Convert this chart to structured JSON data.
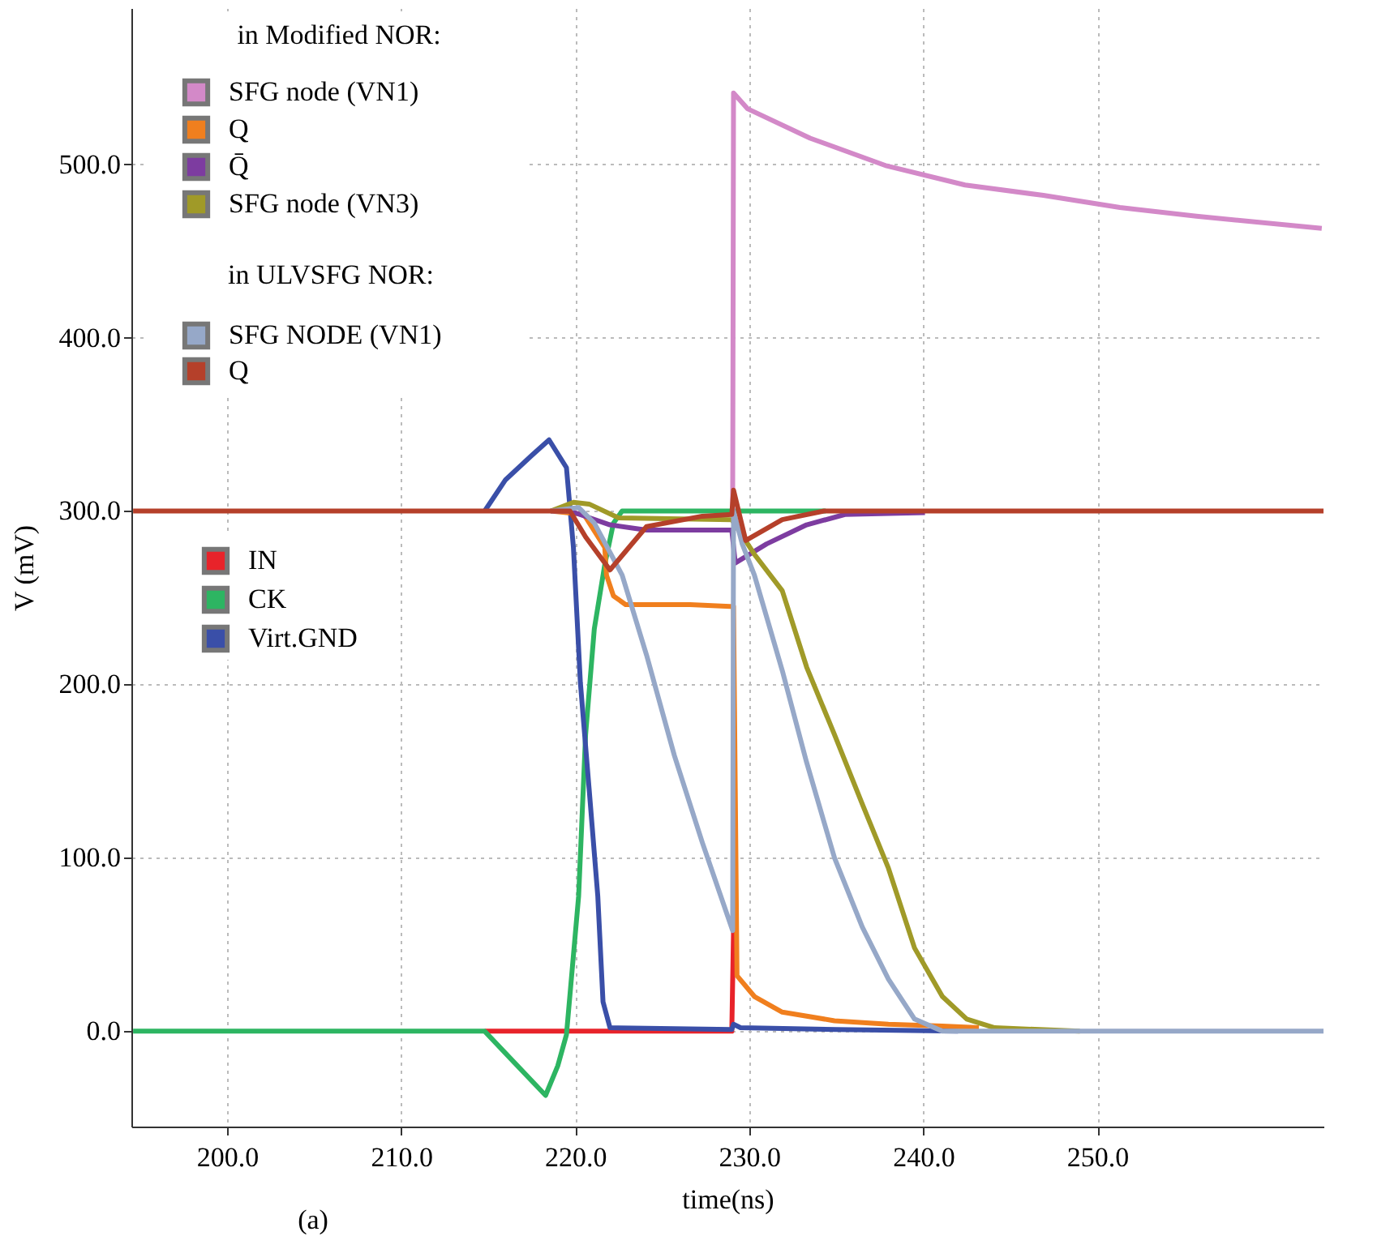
{
  "chart_data": {
    "type": "line",
    "xlabel": "time(ns)",
    "ylabel": "V (mV)",
    "annotations": [
      "in Modified NOR:",
      "in ULVSFG NOR:",
      "(a)"
    ],
    "xlim": [
      194.5,
      263
    ],
    "ylim": [
      -55,
      590
    ],
    "xticks": [
      {
        "value": 200,
        "label": "200.0"
      },
      {
        "value": 210,
        "label": "210.0"
      },
      {
        "value": 220,
        "label": "220.0"
      },
      {
        "value": 230,
        "label": "230.0"
      },
      {
        "value": 240,
        "label": "240.0"
      },
      {
        "value": 250,
        "label": "250.0"
      }
    ],
    "yticks": [
      {
        "value": 0,
        "label": "0.0"
      },
      {
        "value": 100,
        "label": "100.0"
      },
      {
        "value": 200,
        "label": "200.0"
      },
      {
        "value": 300,
        "label": "300.0"
      },
      {
        "value": 400,
        "label": "400.0"
      },
      {
        "value": 500,
        "label": "500.0"
      }
    ],
    "grid": true,
    "legend": "left",
    "line_style": "solid",
    "marker": "none",
    "series": [
      {
        "name": "IN",
        "color": "#e8232a",
        "x": [
          214.8,
          229.0,
          229.1
        ],
        "values": [
          0,
          0,
          58
        ]
      },
      {
        "name": "CK",
        "color": "#2db562",
        "x": [
          194.6,
          214.8,
          216.5,
          218.3,
          219.0,
          219.5,
          220.2,
          220.6,
          221.1,
          221.7,
          222.2,
          222.7,
          234.4
        ],
        "values": [
          0,
          0,
          -18,
          -37,
          -20,
          -2,
          78,
          171,
          232,
          269,
          293,
          300,
          300
        ]
      },
      {
        "name": "Virt.GND",
        "color": "#3a4fa8",
        "x": [
          214.8,
          216.0,
          217.5,
          218.5,
          219.5,
          219.9,
          220.3,
          220.8,
          221.3,
          221.6,
          222.0,
          229.0,
          229.1,
          229.5,
          235.0,
          242.0
        ],
        "values": [
          300,
          318,
          332,
          341,
          325,
          279,
          201,
          140,
          78,
          17,
          2,
          1,
          4,
          2,
          1,
          0
        ]
      },
      {
        "name": "SFG node (VN1)",
        "color": "#d389c8",
        "x": [
          229.05,
          229.1,
          229.9,
          233.5,
          237.9,
          242.4,
          246.9,
          251.3,
          255.7,
          262.9
        ],
        "values": [
          300,
          541,
          532,
          515,
          499,
          488,
          482,
          475,
          470,
          463
        ]
      },
      {
        "name": "Q",
        "color": "#f07f1e",
        "x": [
          218.6,
          220.5,
          221.7,
          221.8,
          222.2,
          222.9,
          226.6,
          228.9,
          229.1,
          229.2,
          229.3,
          230.3,
          231.9,
          234.9,
          238.0,
          241.1,
          243.2
        ],
        "values": [
          300,
          298,
          279,
          263,
          251,
          246,
          246,
          245,
          245,
          140,
          32,
          20,
          11,
          6,
          4,
          3,
          2
        ]
      },
      {
        "name": "Q̄",
        "color": "#7d3ca0",
        "x": [
          218.6,
          219.7,
          222.0,
          224.1,
          229.0,
          229.2,
          231.0,
          233.3,
          235.5,
          240.1
        ],
        "values": [
          300,
          300,
          292,
          289,
          289,
          270,
          281,
          292,
          298,
          299
        ]
      },
      {
        "name": "SFG node (VN3)",
        "color": "#a09a28",
        "x": [
          218.6,
          219.9,
          220.8,
          222.5,
          229.0,
          230.3,
          231.9,
          233.3,
          234.9,
          236.5,
          238.0,
          239.5,
          241.1,
          242.5,
          244.1,
          249.0
        ],
        "values": [
          300,
          305,
          304,
          296,
          295,
          275,
          254,
          210,
          171,
          131,
          94,
          48,
          20,
          7,
          2,
          0
        ]
      },
      {
        "name": "SFG NODE (VN1)",
        "color": "#96a8c8",
        "x": [
          218.6,
          220.2,
          221.1,
          222.7,
          224.1,
          225.7,
          227.3,
          229.05,
          229.1,
          229.6,
          230.3,
          231.9,
          233.3,
          234.9,
          236.5,
          238.0,
          239.5,
          241.1,
          263.0
        ],
        "values": [
          300,
          302,
          293,
          263,
          217,
          159,
          109,
          58,
          300,
          281,
          263,
          208,
          155,
          100,
          60,
          30,
          7,
          0,
          0
        ]
      },
      {
        "name": "Q",
        "color": "#b5402a",
        "x": [
          194.6,
          219.7,
          220.6,
          222.0,
          224.1,
          227.3,
          229.0,
          229.1,
          229.8,
          231.9,
          234.3,
          263.0
        ],
        "values": [
          300,
          300,
          285,
          266,
          291,
          297,
          298,
          312,
          283,
          295,
          300,
          300
        ]
      }
    ]
  }
}
